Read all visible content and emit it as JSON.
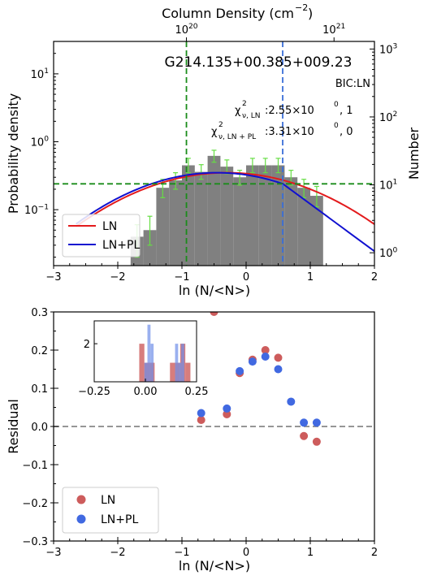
{
  "chart_data": [
    {
      "type": "bar",
      "title": "",
      "object_label": "G214.135+00.385+009.23",
      "bic_label": "BIC:LN",
      "chi_ln": {
        "sym": "χ",
        "sup": "2",
        "sub": "ν, LN",
        "val": ":2.55×10",
        "exp": "0",
        "tail": ", 1"
      },
      "chi_lnpl": {
        "sym": "χ",
        "sup": "2",
        "sub": "ν, LN + PL",
        "val": ":3.31×10",
        "exp": "0",
        "tail": ", 0"
      },
      "xlabel": "ln (N/<N>)",
      "ylabel": "Probability density",
      "top_xlabel": "Column Density (cm",
      "top_xlabel_exp": "−2",
      "top_xlabel_close": ")",
      "right_ylabel": "Number",
      "xlim": [
        -3,
        2
      ],
      "ylim_log": [
        0.015,
        30
      ],
      "x_ticks": [
        -3,
        -2,
        -1,
        0,
        1,
        2
      ],
      "x_tick_labels": [
        "−3",
        "−2",
        "−1",
        "0",
        "1",
        "2"
      ],
      "y_ticks": [
        0.1,
        1,
        10
      ],
      "y_tick_labels": [
        {
          "base": "10",
          "exp": "−1"
        },
        {
          "base": "10",
          "exp": "0"
        },
        {
          "base": "10",
          "exp": "1"
        }
      ],
      "top_ticks": [
        -0.93,
        1.37
      ],
      "top_tick_labels": [
        {
          "base": "10",
          "exp": "20"
        },
        {
          "base": "10",
          "exp": "21"
        }
      ],
      "right_ticks": [
        1,
        10,
        100,
        1000
      ],
      "right_tick_labels": [
        {
          "base": "10",
          "exp": "0"
        },
        {
          "base": "10",
          "exp": "1"
        },
        {
          "base": "10",
          "exp": "2"
        },
        {
          "base": "10",
          "exp": "3"
        }
      ],
      "right_scale": 0.0232,
      "hist_bins": [
        {
          "x0": -1.8,
          "x1": -1.6,
          "y": 0.04
        },
        {
          "x0": -1.6,
          "x1": -1.4,
          "y": 0.05
        },
        {
          "x0": -1.4,
          "x1": -1.2,
          "y": 0.21
        },
        {
          "x0": -1.2,
          "x1": -1.0,
          "y": 0.27
        },
        {
          "x0": -1.0,
          "x1": -0.8,
          "y": 0.45
        },
        {
          "x0": -0.8,
          "x1": -0.6,
          "y": 0.36
        },
        {
          "x0": -0.6,
          "x1": -0.4,
          "y": 0.62
        },
        {
          "x0": -0.4,
          "x1": -0.2,
          "y": 0.43
        },
        {
          "x0": -0.2,
          "x1": 0.0,
          "y": 0.3
        },
        {
          "x0": 0.0,
          "x1": 0.2,
          "y": 0.45
        },
        {
          "x0": 0.2,
          "x1": 0.4,
          "y": 0.45
        },
        {
          "x0": 0.4,
          "x1": 0.6,
          "y": 0.45
        },
        {
          "x0": 0.6,
          "x1": 0.8,
          "y": 0.3
        },
        {
          "x0": 0.8,
          "x1": 1.0,
          "y": 0.21
        },
        {
          "x0": 1.0,
          "x1": 1.2,
          "y": 0.16
        }
      ],
      "error_bars": [
        {
          "x": -1.7,
          "lo": 0.02,
          "hi": 0.06
        },
        {
          "x": -1.5,
          "lo": 0.03,
          "hi": 0.08
        },
        {
          "x": -1.3,
          "lo": 0.15,
          "hi": 0.28
        },
        {
          "x": -1.1,
          "lo": 0.2,
          "hi": 0.35
        },
        {
          "x": -0.9,
          "lo": 0.35,
          "hi": 0.57
        },
        {
          "x": -0.7,
          "lo": 0.28,
          "hi": 0.46
        },
        {
          "x": -0.5,
          "lo": 0.5,
          "hi": 0.75
        },
        {
          "x": -0.3,
          "lo": 0.34,
          "hi": 0.54
        },
        {
          "x": -0.1,
          "lo": 0.23,
          "hi": 0.38
        },
        {
          "x": 0.1,
          "lo": 0.35,
          "hi": 0.57
        },
        {
          "x": 0.3,
          "lo": 0.35,
          "hi": 0.57
        },
        {
          "x": 0.5,
          "lo": 0.35,
          "hi": 0.57
        },
        {
          "x": 0.7,
          "lo": 0.23,
          "hi": 0.38
        },
        {
          "x": 0.9,
          "lo": 0.15,
          "hi": 0.28
        },
        {
          "x": 1.1,
          "lo": 0.11,
          "hi": 0.22
        }
      ],
      "ln_fit": {
        "name": "LN",
        "color": "#e31a1c",
        "amp": 0.35,
        "mu": -0.3,
        "sigma": 1.23
      },
      "lnpl_fit": {
        "name": "LN+PL",
        "color": "#1010d0",
        "amp": 0.35,
        "mu": -0.45,
        "sigma": 1.18,
        "x_break": 0.57,
        "slope": -1.6
      },
      "hline": {
        "y": 0.24,
        "color": "#1a8c1a"
      },
      "vlines": [
        {
          "x": -0.93,
          "color": "#1a8c1a"
        },
        {
          "x": 0.57,
          "color": "#3a6fd8"
        }
      ],
      "bar_color": "#808080",
      "err_color": "#66dd44",
      "legend_position": "lower-left"
    },
    {
      "type": "scatter",
      "title": "",
      "xlabel": "ln (N/<N>)",
      "ylabel": "Residual",
      "xlim": [
        -3,
        2
      ],
      "ylim": [
        -0.3,
        0.3
      ],
      "x_ticks": [
        -3,
        -2,
        -1,
        0,
        1,
        2
      ],
      "x_tick_labels": [
        "−3",
        "−2",
        "−1",
        "0",
        "1",
        "2"
      ],
      "y_ticks": [
        -0.3,
        -0.2,
        -0.1,
        0.0,
        0.1,
        0.2,
        0.3
      ],
      "y_tick_labels": [
        "−0.3",
        "−0.2",
        "−0.1",
        "0.0",
        "0.1",
        "0.2",
        "0.3"
      ],
      "zero_line": {
        "y": 0.0,
        "color": "#888888"
      },
      "series": [
        {
          "name": "LN",
          "color": "#cd5c5c",
          "x": [
            -0.7,
            -0.3,
            -0.1,
            0.1,
            0.3,
            0.5,
            0.9,
            1.1
          ],
          "y": [
            0.017,
            0.032,
            0.14,
            0.175,
            0.2,
            0.18,
            -0.025,
            -0.04
          ]
        },
        {
          "name": "LN+PL",
          "color": "#4169e1",
          "x": [
            -0.7,
            -0.3,
            -0.1,
            0.1,
            0.3,
            0.5,
            0.7,
            0.9,
            1.1
          ],
          "y": [
            0.035,
            0.047,
            0.145,
            0.17,
            0.183,
            0.15,
            0.065,
            0.01,
            0.01
          ]
        }
      ],
      "offscale_point": {
        "x": -0.5,
        "y": 0.3,
        "color": "#cd5c5c"
      },
      "legend_position": "lower-left",
      "inset": {
        "type": "histogram",
        "xlim": [
          -0.25,
          0.25
        ],
        "ylim": [
          0,
          3.2
        ],
        "x_ticks": [
          -0.25,
          0.0,
          0.25
        ],
        "x_tick_labels": [
          "−0.25",
          "0.00",
          "0.25"
        ],
        "y_ticks": [
          2
        ],
        "y_tick_labels": [
          "2"
        ],
        "bins_ln": [
          {
            "x0": -0.03,
            "x1": -0.005,
            "y": 2
          },
          {
            "x0": -0.005,
            "x1": 0.02,
            "y": 1
          },
          {
            "x0": 0.02,
            "x1": 0.045,
            "y": 1
          },
          {
            "x0": 0.12,
            "x1": 0.145,
            "y": 1
          },
          {
            "x0": 0.145,
            "x1": 0.17,
            "y": 1
          },
          {
            "x0": 0.17,
            "x1": 0.195,
            "y": 2
          },
          {
            "x0": 0.195,
            "x1": 0.22,
            "y": 1
          }
        ],
        "bins_lnpl": [
          {
            "x0": -0.005,
            "x1": 0.01,
            "y": 1
          },
          {
            "x0": 0.01,
            "x1": 0.025,
            "y": 3
          },
          {
            "x0": 0.025,
            "x1": 0.04,
            "y": 2
          },
          {
            "x0": 0.145,
            "x1": 0.16,
            "y": 2
          },
          {
            "x0": 0.16,
            "x1": 0.175,
            "y": 1
          },
          {
            "x0": 0.175,
            "x1": 0.19,
            "y": 2
          }
        ],
        "color_ln": "#cd5c5c",
        "color_lnpl": "#6f8fe8"
      }
    }
  ]
}
